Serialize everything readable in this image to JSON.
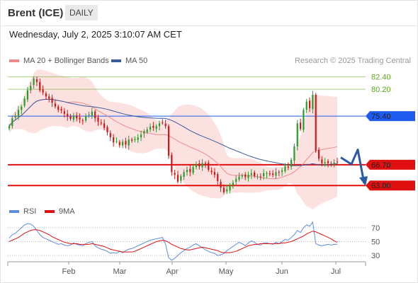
{
  "header": {
    "title": "Brent (ICE)",
    "timeframe": "DAILY"
  },
  "timestamp": "Wednesday, July 2, 2025 3:10:07 AM CET",
  "legend": {
    "bollinger": {
      "label": "MA 20 + Bollinger Bands",
      "color": "#f08a8a"
    },
    "ma50": {
      "label": "MA 50",
      "color": "#3a5a9c"
    },
    "rsi": {
      "label": "RSI",
      "color": "#5b8de0"
    },
    "ma9": {
      "label": "9MA",
      "color": "#e01010"
    }
  },
  "copyright": "Research © 2025 Trading Central",
  "levels": {
    "r3": {
      "label": "82.40",
      "color": "#5aaa1a"
    },
    "r2": {
      "label": "80.20",
      "color": "#5aaa1a"
    },
    "r1": {
      "label": "75.40",
      "color": "#1e5bf0"
    },
    "s1": {
      "label": "66.70",
      "color": "#e01010"
    },
    "s2": {
      "label": "63.00",
      "color": "#e01010"
    }
  },
  "x_axis": [
    "Feb",
    "Mar",
    "Apr",
    "May",
    "Jun",
    "Jul"
  ],
  "rsi_axis": [
    "70",
    "50",
    "30"
  ],
  "chart_data": [
    {
      "type": "candlestick",
      "title": "Brent (ICE)",
      "timeframe": "daily",
      "ylim": [
        60.5,
        84
      ],
      "horizontal_levels": [
        82.4,
        80.2,
        75.4,
        66.7,
        63.0
      ],
      "forecast_arrow": [
        68.0,
        66.8,
        69.4,
        63.4
      ],
      "close": [
        73.6,
        75.0,
        75.5,
        76.5,
        77.1,
        78.5,
        80.0,
        80.8,
        82.1,
        81.5,
        80.0,
        79.6,
        78.9,
        78.5,
        77.8,
        77.1,
        76.5,
        76.4,
        75.8,
        75.3,
        74.9,
        75.5,
        75.0,
        74.8,
        74.6,
        75.4,
        75.6,
        76.2,
        75.0,
        74.4,
        74.1,
        73.3,
        72.5,
        71.6,
        70.7,
        70.9,
        70.2,
        70.8,
        70.3,
        71.2,
        71.0,
        71.3,
        71.6,
        72.1,
        72.7,
        73.0,
        73.5,
        73.3,
        73.6,
        74.1,
        74.2,
        73.6,
        68.3,
        65.4,
        64.9,
        63.7,
        64.7,
        65.4,
        65.8,
        65.4,
        66.3,
        66.8,
        66.4,
        67.0,
        66.9,
        65.8,
        65.4,
        64.9,
        63.8,
        62.6,
        61.8,
        62.3,
        63.1,
        63.5,
        64.2,
        64.6,
        64.8,
        64.5,
        64.9,
        65.2,
        64.7,
        64.6,
        64.5,
        65.2,
        65.2,
        65.0,
        64.9,
        65.4,
        65.3,
        65.7,
        66.4,
        66.2,
        67.6,
        70.0,
        74.1,
        73.1,
        76.5,
        78.0,
        76.8,
        79.2,
        69.2,
        67.8,
        67.0,
        67.2,
        67.0,
        66.7,
        67.1,
        67.2
      ]
    },
    {
      "type": "line",
      "title": "RSI",
      "ylim": [
        25,
        80
      ],
      "ticks": [
        70,
        50,
        30
      ],
      "series": [
        {
          "name": "RSI",
          "values": [
            55,
            60,
            62,
            66,
            70,
            74,
            76,
            75,
            72,
            66,
            60,
            56,
            54,
            52,
            50,
            48,
            46,
            47,
            45,
            44,
            45,
            48,
            46,
            45,
            44,
            47,
            49,
            50,
            44,
            41,
            39,
            38,
            36,
            33,
            34,
            33,
            36,
            34,
            37,
            39,
            40,
            42,
            44,
            46,
            48,
            50,
            52,
            53,
            54,
            55,
            56,
            46,
            27,
            23,
            26,
            30,
            34,
            37,
            40,
            42,
            45,
            47,
            44,
            41,
            38,
            36,
            34,
            33,
            30,
            31,
            33,
            37,
            40,
            43,
            46,
            49,
            47,
            44,
            48,
            51,
            49,
            46,
            45,
            48,
            48,
            47,
            46,
            49,
            47,
            50,
            53,
            52,
            56,
            60,
            66,
            63,
            70,
            74,
            72,
            78,
            47,
            45,
            44,
            45,
            46,
            45,
            46,
            46
          ]
        },
        {
          "name": "9MA",
          "values": [
            50,
            52,
            54,
            56,
            59,
            62,
            64,
            66,
            67,
            67,
            66,
            64,
            62,
            60,
            57,
            55,
            53,
            51,
            49,
            48,
            47,
            47,
            47,
            46,
            46,
            46,
            46,
            47,
            46,
            45,
            44,
            43,
            41,
            39,
            38,
            37,
            36,
            35,
            35,
            35,
            35,
            36,
            38,
            40,
            42,
            44,
            46,
            48,
            50,
            51,
            52,
            51,
            49,
            46,
            44,
            42,
            40,
            39,
            38,
            38,
            39,
            40,
            41,
            42,
            41,
            40,
            39,
            38,
            37,
            35,
            34,
            34,
            34,
            35,
            36,
            38,
            40,
            42,
            44,
            45,
            46,
            46,
            47,
            47,
            47,
            47,
            47,
            47,
            47,
            48,
            48,
            49,
            50,
            52,
            54,
            56,
            58,
            61,
            63,
            65,
            64,
            62,
            60,
            58,
            56,
            54,
            51,
            49
          ]
        }
      ]
    }
  ]
}
